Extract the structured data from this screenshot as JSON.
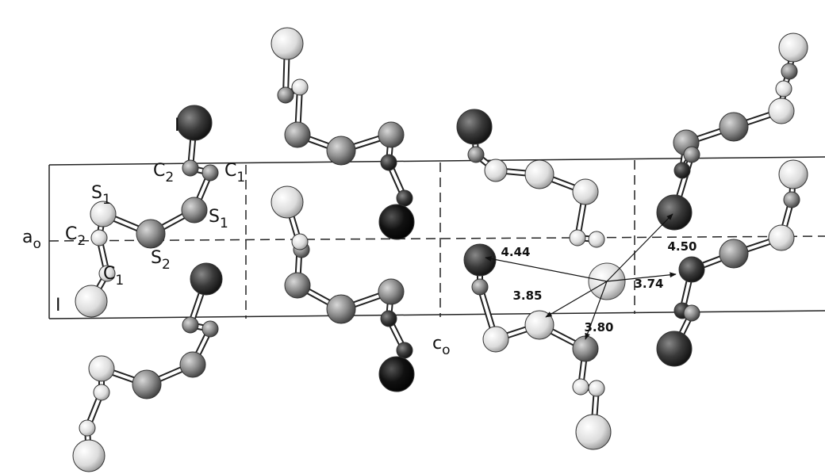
{
  "atom_labels": [
    {
      "symbol": "I"
    },
    {
      "symbol": "C",
      "subscript": "2"
    },
    {
      "symbol": "C",
      "subscript": "1"
    },
    {
      "symbol": "S",
      "subscript": "1"
    },
    {
      "symbol": "S",
      "subscript": "1"
    },
    {
      "symbol": "C",
      "subscript": "2"
    },
    {
      "symbol": "S",
      "subscript": "2"
    },
    {
      "symbol": "C",
      "subscript": "1"
    },
    {
      "symbol": "I"
    }
  ],
  "axis_labels": [
    {
      "symbol": "a",
      "subscript": "o"
    },
    {
      "symbol": "c",
      "subscript": "o"
    }
  ],
  "distances": [
    "4.44",
    "4.50",
    "3.74",
    "3.85",
    "3.80"
  ]
}
